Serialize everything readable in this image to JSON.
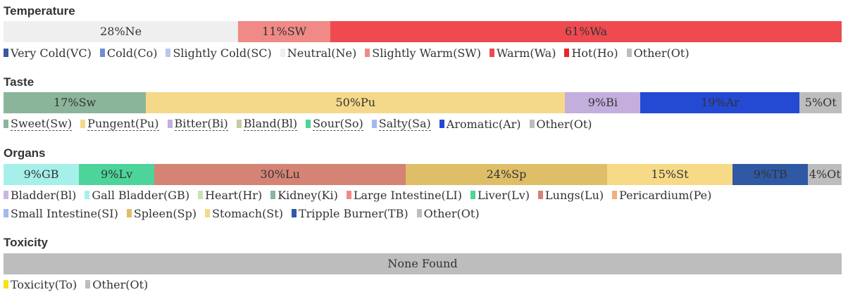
{
  "chart_data": [
    {
      "type": "bar",
      "title": "Temperature",
      "segments": [
        {
          "label": "28%Ne",
          "key": "Ne",
          "value": 28,
          "color": "#efefef"
        },
        {
          "label": "11%SW",
          "key": "SW",
          "value": 11,
          "color": "#f08a86"
        },
        {
          "label": "61%Wa",
          "key": "Wa",
          "value": 61,
          "color": "#ef4a50"
        }
      ],
      "legend": [
        {
          "label": "Very Cold(VC)",
          "color": "#3c5a9a"
        },
        {
          "label": "Cold(Co)",
          "color": "#6f8ed6"
        },
        {
          "label": "Slightly Cold(SC)",
          "color": "#b8c8ee"
        },
        {
          "label": "Neutral(Ne)",
          "color": "#efefef"
        },
        {
          "label": "Slightly Warm(SW)",
          "color": "#f08a86"
        },
        {
          "label": "Warm(Wa)",
          "color": "#ef4a50"
        },
        {
          "label": "Hot(Ho)",
          "color": "#e8262c"
        },
        {
          "label": "Other(Ot)",
          "color": "#bdbdbd"
        }
      ]
    },
    {
      "type": "bar",
      "title": "Taste",
      "segments": [
        {
          "label": "17%Sw",
          "key": "Sw",
          "value": 17,
          "color": "#8bb59a"
        },
        {
          "label": "50%Pu",
          "key": "Pu",
          "value": 50,
          "color": "#f5d98a"
        },
        {
          "label": "9%Bi",
          "key": "Bi",
          "value": 9,
          "color": "#c3aedd"
        },
        {
          "label": "19%Ar",
          "key": "Ar",
          "value": 19,
          "color": "#2449d3"
        },
        {
          "label": "5%Ot",
          "key": "Ot",
          "value": 5,
          "color": "#bdbdbd"
        }
      ],
      "legend": [
        {
          "label": "Sweet(Sw)",
          "color": "#8bb59a",
          "dotted": true
        },
        {
          "label": "Pungent(Pu)",
          "color": "#f5d98a",
          "dotted": true
        },
        {
          "label": "Bitter(Bi)",
          "color": "#c3aedd",
          "dotted": true
        },
        {
          "label": "Bland(Bl)",
          "color": "#c9c9a2",
          "dotted": true
        },
        {
          "label": "Sour(So)",
          "color": "#4dd49a",
          "dotted": true
        },
        {
          "label": "Salty(Sa)",
          "color": "#a5b8f0",
          "dotted": true
        },
        {
          "label": "Aromatic(Ar)",
          "color": "#2449d3",
          "dotted": false
        },
        {
          "label": "Other(Ot)",
          "color": "#bdbdbd",
          "dotted": false
        }
      ]
    },
    {
      "type": "bar",
      "title": "Organs",
      "segments": [
        {
          "label": "9%GB",
          "key": "GB",
          "value": 9,
          "color": "#a5f0ea"
        },
        {
          "label": "9%Lv",
          "key": "Lv",
          "value": 9,
          "color": "#4dd49a"
        },
        {
          "label": "30%Lu",
          "key": "Lu",
          "value": 30,
          "color": "#d48375"
        },
        {
          "label": "24%Sp",
          "key": "Sp",
          "value": 24,
          "color": "#dfbe68"
        },
        {
          "label": "15%St",
          "key": "St",
          "value": 15,
          "color": "#f6da88"
        },
        {
          "label": "9%TB",
          "key": "TB",
          "value": 9,
          "color": "#2f59a4"
        },
        {
          "label": "4%Ot",
          "key": "Ot",
          "value": 4,
          "color": "#bdbdbd"
        }
      ],
      "legend": [
        {
          "label": "Bladder(Bl)",
          "color": "#c9b8e0"
        },
        {
          "label": "Gall Bladder(GB)",
          "color": "#a5f0ea"
        },
        {
          "label": "Heart(Hr)",
          "color": "#c3e6b4"
        },
        {
          "label": "Kidney(Ki)",
          "color": "#8bb59a"
        },
        {
          "label": "Large Intestine(LI)",
          "color": "#f08a86"
        },
        {
          "label": "Liver(Lv)",
          "color": "#4dd49a"
        },
        {
          "label": "Lungs(Lu)",
          "color": "#d48375"
        },
        {
          "label": "Pericardium(Pe)",
          "color": "#f2b07a"
        },
        {
          "label": "Small Intestine(SI)",
          "color": "#a5b8f0"
        },
        {
          "label": "Spleen(Sp)",
          "color": "#dfbe68"
        },
        {
          "label": "Stomach(St)",
          "color": "#f6da88"
        },
        {
          "label": "Tripple Burner(TB)",
          "color": "#2f59a4"
        },
        {
          "label": "Other(Ot)",
          "color": "#bdbdbd"
        }
      ]
    },
    {
      "type": "bar",
      "title": "Toxicity",
      "segments": [
        {
          "label": "None Found",
          "key": "None",
          "value": 100,
          "color": "#bdbdbd"
        }
      ],
      "legend": [
        {
          "label": "Toxicity(To)",
          "color": "#f5e21a"
        },
        {
          "label": "Other(Ot)",
          "color": "#bdbdbd"
        }
      ]
    }
  ]
}
